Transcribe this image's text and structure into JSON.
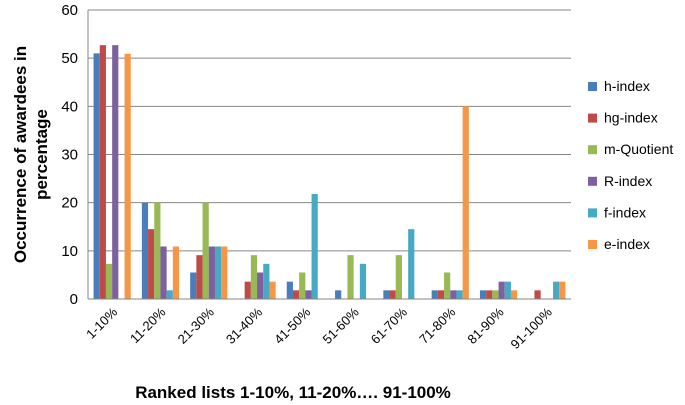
{
  "chart_data": {
    "type": "bar",
    "title": "",
    "xlabel": "Ranked lists 1-10%, 11-20%…. 91-100%",
    "ylabel": "Occurrence of awardees in percentage",
    "ylim": [
      0,
      60
    ],
    "yticks": [
      0,
      10,
      20,
      30,
      40,
      50,
      60
    ],
    "grid": true,
    "legend_position": "right",
    "categories": [
      "1-10%",
      "11-20%",
      "21-30%",
      "31-40%",
      "41-50%",
      "51-60%",
      "61-70%",
      "71-80%",
      "81-90%",
      "91-100%"
    ],
    "series": [
      {
        "name": "h-index",
        "color": "#4a7ebb",
        "values": [
          51,
          20,
          5.5,
          0,
          3.6,
          1.8,
          1.8,
          1.8,
          1.8,
          0
        ]
      },
      {
        "name": "hg-index",
        "color": "#be4b48",
        "values": [
          52.7,
          14.5,
          9.1,
          3.6,
          1.8,
          0,
          1.8,
          1.8,
          1.8,
          1.8
        ]
      },
      {
        "name": "m-Quotient",
        "color": "#98b954",
        "values": [
          7.3,
          20,
          20,
          9.1,
          5.5,
          9.1,
          9.1,
          5.5,
          1.8,
          0
        ]
      },
      {
        "name": "R-index",
        "color": "#7d60a0",
        "values": [
          52.7,
          10.9,
          10.9,
          5.5,
          1.8,
          0,
          0,
          1.8,
          3.6,
          0
        ]
      },
      {
        "name": "f-index",
        "color": "#46aac5",
        "values": [
          0,
          1.8,
          10.9,
          7.3,
          21.8,
          7.3,
          14.5,
          1.8,
          3.6,
          3.6
        ]
      },
      {
        "name": "e-index",
        "color": "#f79646",
        "values": [
          50.9,
          10.9,
          10.9,
          3.6,
          0,
          0,
          0,
          40,
          1.8,
          3.6
        ]
      }
    ]
  }
}
